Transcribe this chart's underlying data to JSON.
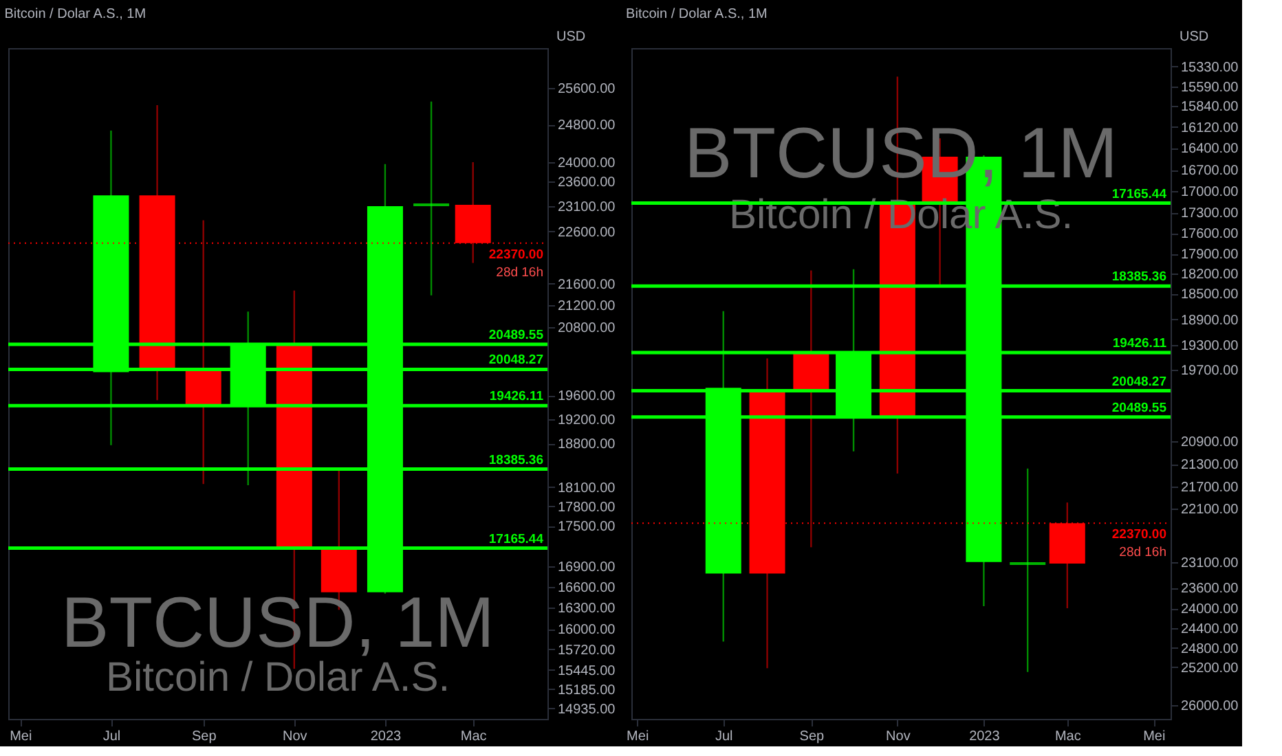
{
  "chart_data": [
    {
      "type": "candlestick",
      "title": "Bitcoin / Dolar A.S., 1M",
      "ylabel": "USD",
      "log": true,
      "grid": false,
      "x": [
        "2022-07",
        "2022-08",
        "2022-09",
        "2022-10",
        "2022-11",
        "2022-12",
        "2023-01",
        "2023-02",
        "2023-03"
      ],
      "ohlc": [
        [
          20000,
          24670,
          18770,
          23320
        ],
        [
          23320,
          25220,
          19520,
          20050
        ],
        [
          20050,
          22820,
          18150,
          19430
        ],
        [
          19430,
          21080,
          18130,
          20490
        ],
        [
          20490,
          21470,
          15460,
          17170
        ],
        [
          17170,
          18380,
          16270,
          16520
        ],
        [
          16520,
          23960,
          16500,
          23100
        ],
        [
          23130,
          25300,
          21380,
          23130
        ],
        [
          23130,
          24000,
          21990,
          22370
        ]
      ],
      "colors": [
        "#00ff00",
        "#ff0000",
        "#ff0000",
        "#00ff00",
        "#ff0000",
        "#ff0000",
        "#00ff00",
        "#00ff00",
        "#ff0000"
      ],
      "xlim": [
        "2022-04-23",
        "2023-04-20"
      ],
      "xticks": [
        {
          "value": "2022-05",
          "label": "Mei"
        },
        {
          "value": "2022-07",
          "label": "Jul"
        },
        {
          "value": "2022-09",
          "label": "Sep"
        },
        {
          "value": "2022-11",
          "label": "Nov"
        },
        {
          "value": "2023-01",
          "label": "2023"
        },
        {
          "value": "2023-03",
          "label": "Mac"
        }
      ],
      "ylim": [
        14800,
        26500
      ],
      "yticks": [
        {
          "value": 25600,
          "label": "25600.00"
        },
        {
          "value": 24800,
          "label": "24800.00"
        },
        {
          "value": 24000,
          "label": "24000.00"
        },
        {
          "value": 23600,
          "label": "23600.00"
        },
        {
          "value": 23100,
          "label": "23100.00"
        },
        {
          "value": 22600,
          "label": "22600.00"
        },
        {
          "value": 21600,
          "label": "21600.00"
        },
        {
          "value": 21200,
          "label": "21200.00"
        },
        {
          "value": 20800,
          "label": "20800.00"
        },
        {
          "value": 19600,
          "label": "19600.00"
        },
        {
          "value": 19200,
          "label": "19200.00"
        },
        {
          "value": 18800,
          "label": "18800.00"
        },
        {
          "value": 18100,
          "label": "18100.00"
        },
        {
          "value": 17800,
          "label": "17800.00"
        },
        {
          "value": 17500,
          "label": "17500.00"
        },
        {
          "value": 16900,
          "label": "16900.00"
        },
        {
          "value": 16600,
          "label": "16600.00"
        },
        {
          "value": 16300,
          "label": "16300.00"
        },
        {
          "value": 16000,
          "label": "16000.00"
        },
        {
          "value": 15720,
          "label": "15720.00"
        },
        {
          "value": 15445,
          "label": "15445.00"
        },
        {
          "value": 15185,
          "label": "15185.00"
        },
        {
          "value": 14935,
          "label": "14935.00"
        }
      ],
      "ref_lines": [
        {
          "axis": "y",
          "value": 20489.55,
          "label": "20489.55",
          "color": "#00ff00"
        },
        {
          "axis": "y",
          "value": 20048.27,
          "label": "20048.27",
          "color": "#00ff00"
        },
        {
          "axis": "y",
          "value": 19426.11,
          "label": "19426.11",
          "color": "#00ff00"
        },
        {
          "axis": "y",
          "value": 18385.36,
          "label": "18385.36",
          "color": "#00ff00"
        },
        {
          "axis": "y",
          "value": 17165.44,
          "label": "17165.44",
          "color": "#00ff00"
        },
        {
          "axis": "y",
          "value": 22370,
          "label": "22370.00",
          "color": "#ff0000",
          "line_style": "dotted"
        }
      ],
      "annotations": [
        "BTCUSD, 1M",
        "Bitcoin / Dolar A.S.",
        {
          "text": "28d 16h",
          "y": 22370
        }
      ]
    },
    {
      "type": "candlestick",
      "title": "Bitcoin / Dolar A.S., 1M",
      "ylabel": "USD",
      "log": true,
      "grid": false,
      "x": [
        "2022-07",
        "2022-08",
        "2022-09",
        "2022-10",
        "2022-11",
        "2022-12",
        "2023-01",
        "2023-02",
        "2023-03"
      ],
      "ohlc": [
        [
          20000,
          24670,
          18770,
          23320
        ],
        [
          23320,
          25220,
          19520,
          20050
        ],
        [
          20050,
          22820,
          18150,
          19430
        ],
        [
          19430,
          21080,
          18130,
          20490
        ],
        [
          20490,
          21470,
          15460,
          17170
        ],
        [
          17170,
          18380,
          16270,
          16520
        ],
        [
          16520,
          23960,
          16500,
          23100
        ],
        [
          23130,
          25300,
          21380,
          23130
        ],
        [
          23130,
          24000,
          21990,
          22370
        ]
      ],
      "colors": [
        "#00ff00",
        "#ff0000",
        "#ff0000",
        "#00ff00",
        "#ff0000",
        "#ff0000",
        "#00ff00",
        "#00ff00",
        "#ff0000"
      ],
      "xlim": [
        "2022-04-27",
        "2023-05-13"
      ],
      "xticks": [
        {
          "value": "2022-05",
          "label": "Mei"
        },
        {
          "value": "2022-07",
          "label": "Jul"
        },
        {
          "value": "2022-09",
          "label": "Sep"
        },
        {
          "value": "2022-11",
          "label": "Nov"
        },
        {
          "value": "2023-01",
          "label": "2023"
        },
        {
          "value": "2023-03",
          "label": "Mac"
        },
        {
          "value": "2023-05",
          "label": "Mei"
        }
      ],
      "ylim": [
        26300,
        15100
      ],
      "yticks": [
        {
          "value": 15330,
          "label": "15330.00"
        },
        {
          "value": 15590,
          "label": "15590.00"
        },
        {
          "value": 15840,
          "label": "15840.00"
        },
        {
          "value": 16120,
          "label": "16120.00"
        },
        {
          "value": 16400,
          "label": "16400.00"
        },
        {
          "value": 16700,
          "label": "16700.00"
        },
        {
          "value": 17000,
          "label": "17000.00"
        },
        {
          "value": 17300,
          "label": "17300.00"
        },
        {
          "value": 17600,
          "label": "17600.00"
        },
        {
          "value": 17900,
          "label": "17900.00"
        },
        {
          "value": 18200,
          "label": "18200.00"
        },
        {
          "value": 18500,
          "label": "18500.00"
        },
        {
          "value": 18900,
          "label": "18900.00"
        },
        {
          "value": 19300,
          "label": "19300.00"
        },
        {
          "value": 19700,
          "label": "19700.00"
        },
        {
          "value": 20900,
          "label": "20900.00"
        },
        {
          "value": 21300,
          "label": "21300.00"
        },
        {
          "value": 21700,
          "label": "21700.00"
        },
        {
          "value": 22100,
          "label": "22100.00"
        },
        {
          "value": 23100,
          "label": "23100.00"
        },
        {
          "value": 23600,
          "label": "23600.00"
        },
        {
          "value": 24000,
          "label": "24000.00"
        },
        {
          "value": 24400,
          "label": "24400.00"
        },
        {
          "value": 24800,
          "label": "24800.00"
        },
        {
          "value": 25200,
          "label": "25200.00"
        },
        {
          "value": 26000,
          "label": "26000.00"
        }
      ],
      "ref_lines": [
        {
          "axis": "y",
          "value": 17165.44,
          "label": "17165.44",
          "color": "#00ff00"
        },
        {
          "axis": "y",
          "value": 18385.36,
          "label": "18385.36",
          "color": "#00ff00"
        },
        {
          "axis": "y",
          "value": 19426.11,
          "label": "19426.11",
          "color": "#00ff00"
        },
        {
          "axis": "y",
          "value": 20048.27,
          "label": "20048.27",
          "color": "#00ff00"
        },
        {
          "axis": "y",
          "value": 20489.55,
          "label": "20489.55",
          "color": "#00ff00"
        },
        {
          "axis": "y",
          "value": 22370,
          "label": "22370.00",
          "color": "#ff0000",
          "line_style": "dotted"
        }
      ],
      "annotations": [
        "BTCUSD, 1M",
        "Bitcoin / Dolar A.S.",
        {
          "text": "28d 16h",
          "y": 22370
        }
      ]
    }
  ]
}
